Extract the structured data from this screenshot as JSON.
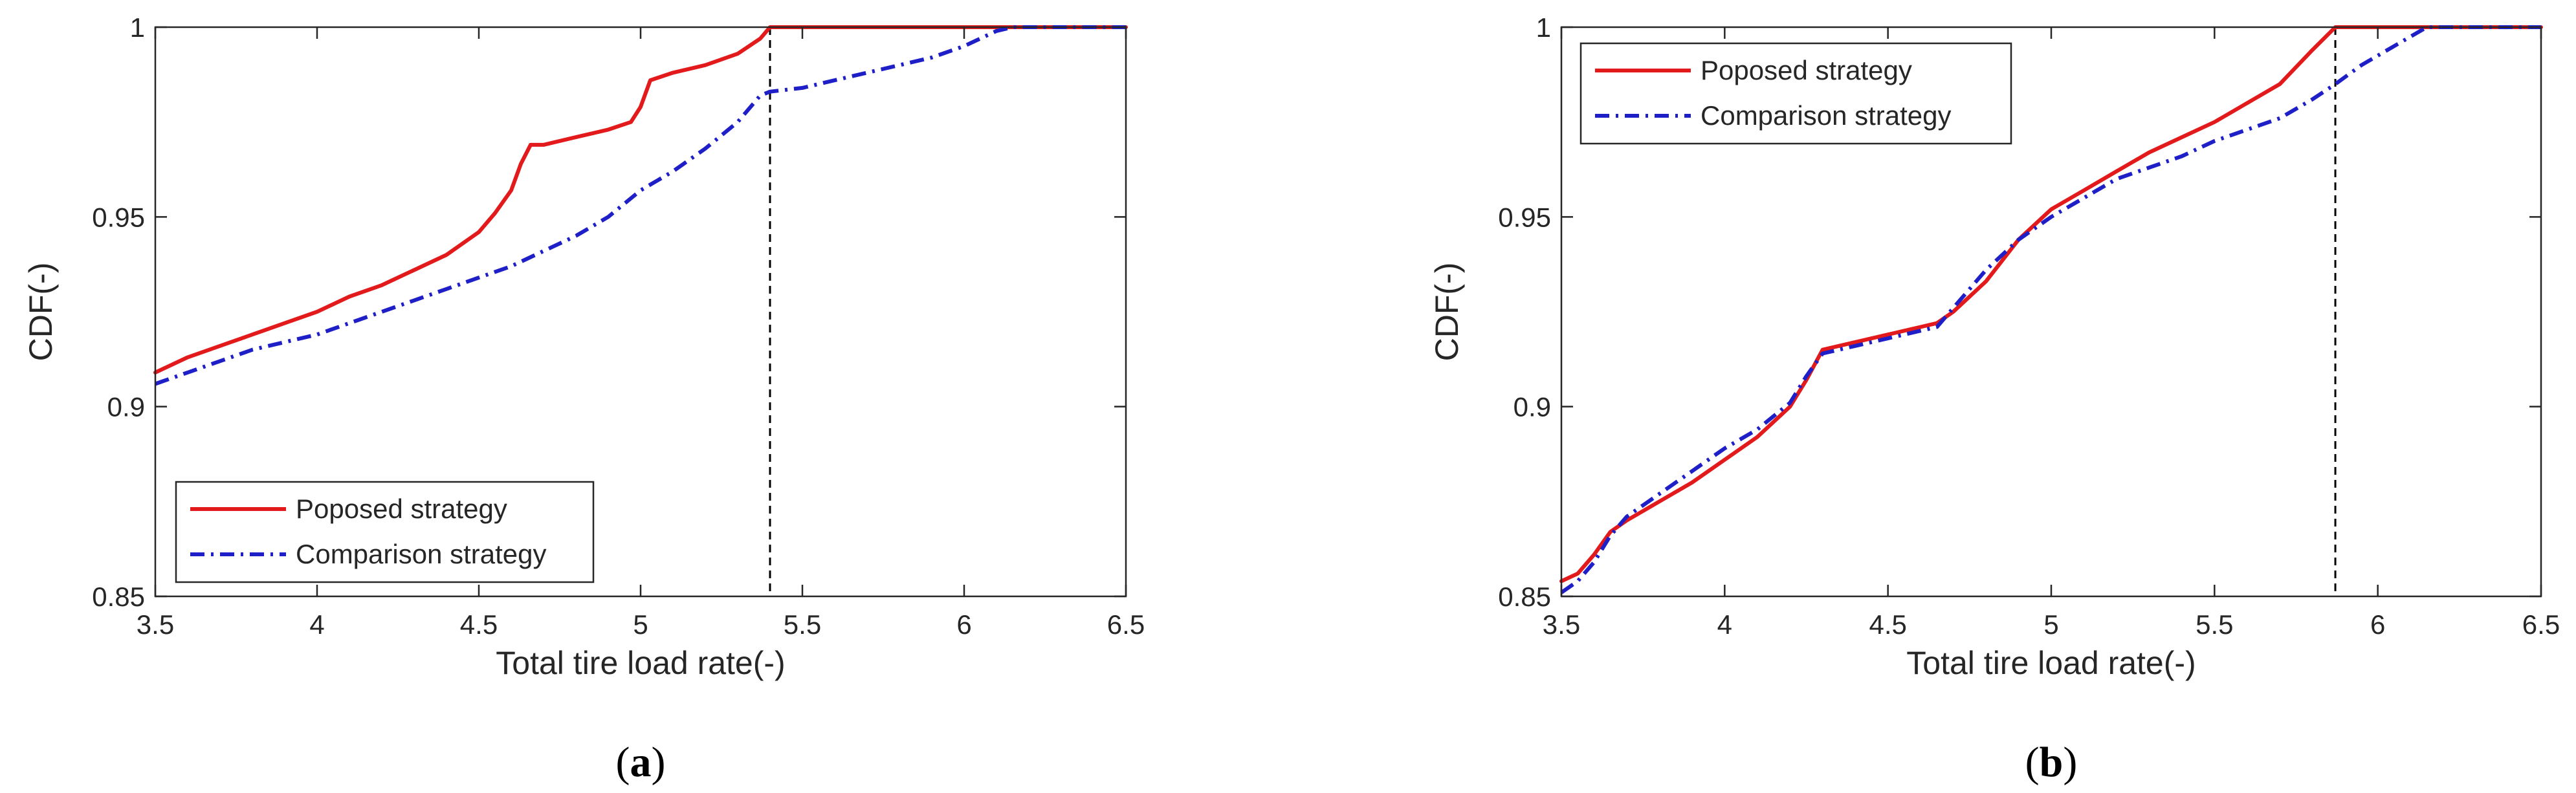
{
  "chart_data": [
    {
      "type": "line",
      "panel": "a",
      "caption_open": "(",
      "caption_letter": "a",
      "caption_close": ")",
      "xlabel": "Total tire load rate(-)",
      "ylabel": "CDF(-)",
      "xlim": [
        3.5,
        6.5
      ],
      "ylim": [
        0.85,
        1.0
      ],
      "xticks": [
        "3.5",
        "4",
        "4.5",
        "5",
        "5.5",
        "6",
        "6.5"
      ],
      "yticks": [
        "0.85",
        "0.9",
        "0.95",
        "1"
      ],
      "legend": "bottom-left",
      "grid": false,
      "vline_x": 5.4,
      "series": [
        {
          "name": "Poposed strategy",
          "color": "#e31a1c",
          "style": "solid",
          "x": [
            3.5,
            3.6,
            3.7,
            3.8,
            3.9,
            4.0,
            4.1,
            4.2,
            4.3,
            4.4,
            4.5,
            4.55,
            4.6,
            4.63,
            4.66,
            4.7,
            4.8,
            4.9,
            4.97,
            5.0,
            5.03,
            5.1,
            5.2,
            5.3,
            5.37,
            5.4,
            5.6,
            5.8,
            6.0,
            6.2,
            6.5
          ],
          "y": [
            0.909,
            0.913,
            0.916,
            0.919,
            0.922,
            0.925,
            0.929,
            0.932,
            0.936,
            0.94,
            0.946,
            0.951,
            0.957,
            0.964,
            0.969,
            0.969,
            0.971,
            0.973,
            0.975,
            0.979,
            0.986,
            0.988,
            0.99,
            0.993,
            0.997,
            1.0,
            1.0,
            1.0,
            1.0,
            1.0,
            1.0
          ]
        },
        {
          "name": "Comparison strategy",
          "color": "#1f1fc8",
          "style": "dashdot",
          "x": [
            3.5,
            3.6,
            3.7,
            3.8,
            3.9,
            4.0,
            4.1,
            4.2,
            4.3,
            4.4,
            4.5,
            4.6,
            4.7,
            4.8,
            4.9,
            5.0,
            5.1,
            5.2,
            5.3,
            5.37,
            5.4,
            5.5,
            5.6,
            5.7,
            5.8,
            5.9,
            6.0,
            6.05,
            6.1,
            6.15,
            6.3,
            6.5
          ],
          "y": [
            0.906,
            0.909,
            0.912,
            0.915,
            0.917,
            0.919,
            0.922,
            0.925,
            0.928,
            0.931,
            0.934,
            0.937,
            0.941,
            0.945,
            0.95,
            0.957,
            0.962,
            0.968,
            0.975,
            0.982,
            0.983,
            0.984,
            0.986,
            0.988,
            0.99,
            0.992,
            0.995,
            0.997,
            0.999,
            1.0,
            1.0,
            1.0
          ]
        }
      ]
    },
    {
      "type": "line",
      "panel": "b",
      "caption_open": "(",
      "caption_letter": "b",
      "caption_close": ")",
      "xlabel": "Total tire load rate(-)",
      "ylabel": "CDF(-)",
      "xlim": [
        3.5,
        6.5
      ],
      "ylim": [
        0.85,
        1.0
      ],
      "xticks": [
        "3.5",
        "4",
        "4.5",
        "5",
        "5.5",
        "6",
        "6.5"
      ],
      "yticks": [
        "0.85",
        "0.9",
        "0.95",
        "1"
      ],
      "legend": "top-left",
      "grid": false,
      "vline_x": 5.87,
      "series": [
        {
          "name": "Poposed strategy",
          "color": "#e31a1c",
          "style": "solid",
          "x": [
            3.5,
            3.55,
            3.6,
            3.65,
            3.7,
            3.8,
            3.9,
            4.0,
            4.1,
            4.2,
            4.25,
            4.3,
            4.4,
            4.5,
            4.6,
            4.65,
            4.7,
            4.8,
            4.9,
            5.0,
            5.1,
            5.2,
            5.3,
            5.4,
            5.5,
            5.6,
            5.7,
            5.8,
            5.87,
            6.0,
            6.2,
            6.5
          ],
          "y": [
            0.854,
            0.856,
            0.861,
            0.867,
            0.87,
            0.875,
            0.88,
            0.886,
            0.892,
            0.9,
            0.907,
            0.915,
            0.917,
            0.919,
            0.921,
            0.922,
            0.925,
            0.933,
            0.944,
            0.952,
            0.957,
            0.962,
            0.967,
            0.971,
            0.975,
            0.98,
            0.985,
            0.994,
            1.0,
            1.0,
            1.0,
            1.0
          ]
        },
        {
          "name": "Comparison strategy",
          "color": "#1f1fc8",
          "style": "dashdot",
          "x": [
            3.5,
            3.55,
            3.6,
            3.65,
            3.7,
            3.8,
            3.9,
            4.0,
            4.1,
            4.2,
            4.25,
            4.3,
            4.4,
            4.5,
            4.6,
            4.65,
            4.7,
            4.8,
            4.9,
            5.0,
            5.1,
            5.2,
            5.3,
            5.4,
            5.5,
            5.6,
            5.7,
            5.8,
            5.87,
            5.95,
            6.05,
            6.15,
            6.3,
            6.5
          ],
          "y": [
            0.851,
            0.854,
            0.859,
            0.866,
            0.871,
            0.877,
            0.883,
            0.889,
            0.894,
            0.901,
            0.908,
            0.914,
            0.916,
            0.918,
            0.92,
            0.921,
            0.926,
            0.936,
            0.944,
            0.95,
            0.955,
            0.96,
            0.963,
            0.966,
            0.97,
            0.973,
            0.976,
            0.981,
            0.985,
            0.99,
            0.995,
            1.0,
            1.0,
            1.0
          ]
        }
      ]
    }
  ]
}
